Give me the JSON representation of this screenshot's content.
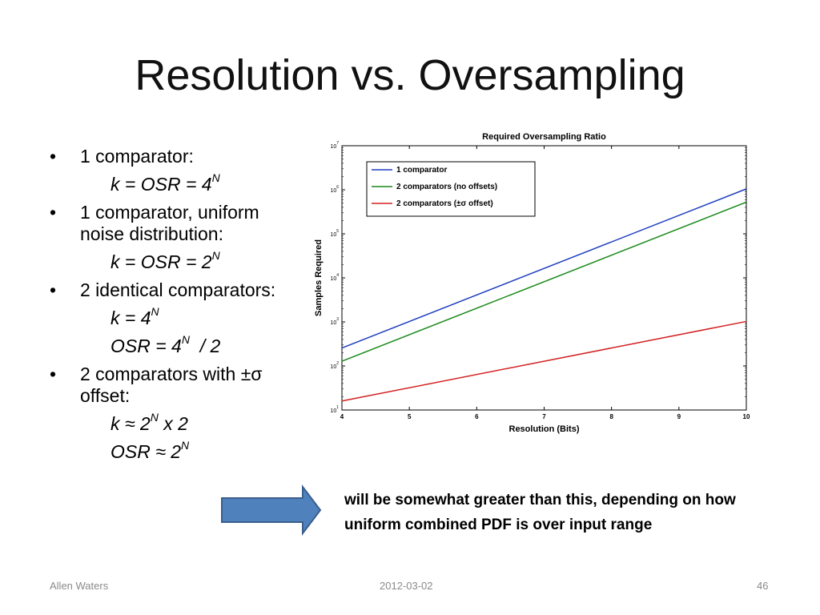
{
  "slide": {
    "title": "Resolution vs. Oversampling",
    "bullets": [
      {
        "text": "1 comparator:",
        "formulas": [
          {
            "pre": "k = OSR = 4",
            "sup": "N",
            "post": ""
          }
        ]
      },
      {
        "text": "1 comparator, uniform noise distribution:",
        "formulas": [
          {
            "pre": "k = OSR  = 2",
            "sup": "N",
            "post": ""
          }
        ]
      },
      {
        "text": "2 identical comparators:",
        "formulas": [
          {
            "pre": "k = 4",
            "sup": "N",
            "post": ""
          },
          {
            "pre": "OSR = 4",
            "sup": "N",
            "post": "  / 2"
          }
        ]
      },
      {
        "text": "2 comparators with ±σ offset:",
        "formulas": [
          {
            "pre": "k ≈ 2",
            "sup": "N",
            "post": " x 2"
          },
          {
            "pre": "OSR ≈ 2",
            "sup": "N",
            "post": ""
          }
        ]
      }
    ],
    "note": "will be somewhat greater than this, depending on how uniform combined PDF is over input range",
    "footer": {
      "author": "Allen Waters",
      "date": "2012-03-02",
      "page": "46"
    },
    "colors": {
      "arrow_fill": "#4f81bd",
      "arrow_stroke": "#3a5f8c"
    }
  },
  "chart_data": {
    "type": "line",
    "title": "Required Oversampling Ratio",
    "xlabel": "Resolution (Bits)",
    "ylabel": "Samples Required",
    "xlim": [
      4,
      10
    ],
    "ylim": [
      10,
      10000000
    ],
    "yscale": "log",
    "x_ticks": [
      4,
      5,
      6,
      7,
      8,
      9,
      10
    ],
    "y_ticks": [
      {
        "base": "10",
        "exp": "1",
        "value": 10
      },
      {
        "base": "10",
        "exp": "2",
        "value": 100
      },
      {
        "base": "10",
        "exp": "3",
        "value": 1000
      },
      {
        "base": "10",
        "exp": "4",
        "value": 10000
      },
      {
        "base": "10",
        "exp": "5",
        "value": 100000
      },
      {
        "base": "10",
        "exp": "6",
        "value": 1000000
      },
      {
        "base": "10",
        "exp": "7",
        "value": 10000000
      }
    ],
    "grid": false,
    "legend_position": "top-left",
    "series": [
      {
        "name": "1 comparator",
        "color": "#1f3fbf",
        "x": [
          4,
          10
        ],
        "y": [
          256,
          1048576
        ]
      },
      {
        "name": "2 comparators (no offsets)",
        "color": "#1a8a1a",
        "x": [
          4,
          10
        ],
        "y": [
          128,
          524288
        ]
      },
      {
        "name": "2 comparators (±σ offset)",
        "color": "#d42020",
        "x": [
          4,
          10
        ],
        "y": [
          16,
          1024
        ]
      }
    ]
  }
}
